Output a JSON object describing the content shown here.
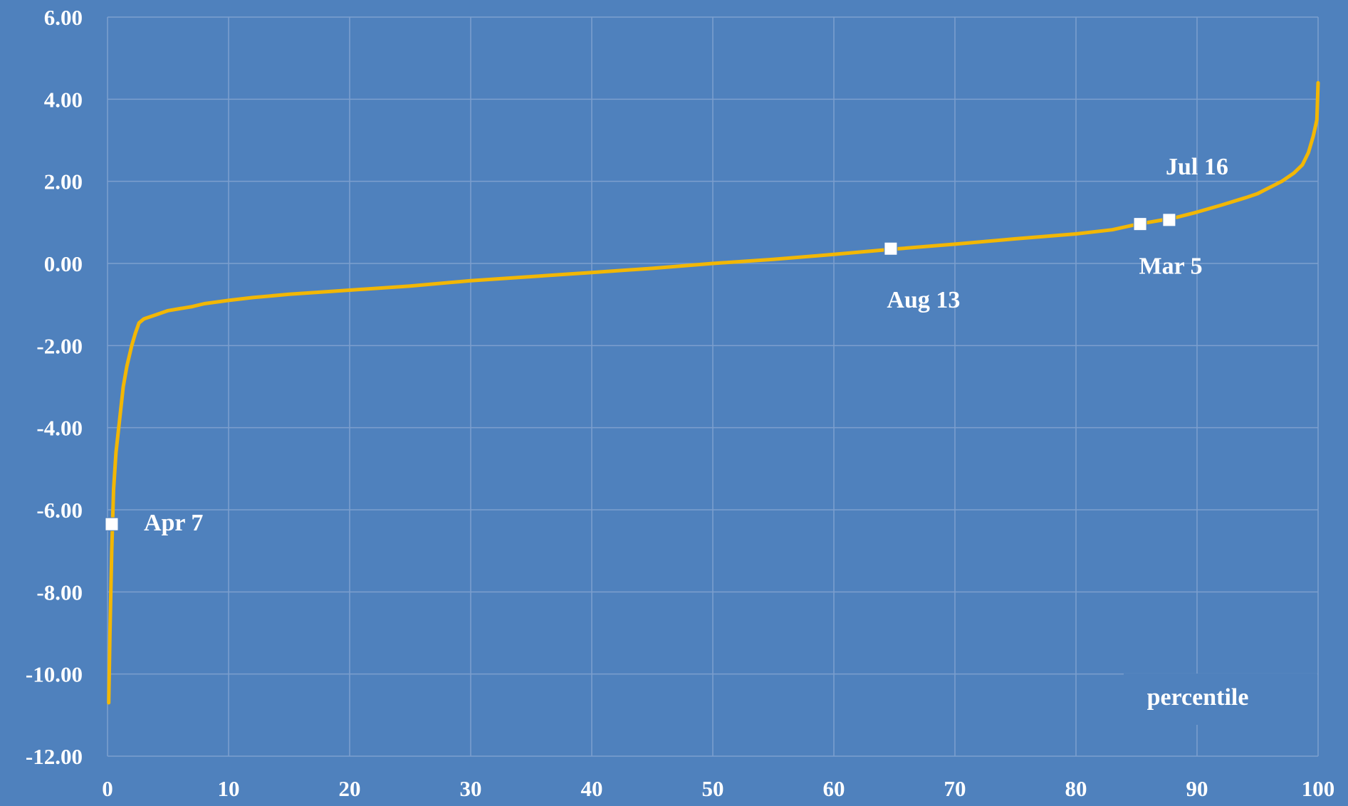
{
  "colors": {
    "background": "#4f81bd",
    "gridline": "#7d9fce",
    "line": "#f2b705",
    "marker": "#ffffff",
    "text": "#ffffff"
  },
  "chart_data": {
    "type": "line",
    "title": "",
    "xlabel": "percentile",
    "ylabel": "",
    "xlim": [
      0,
      100
    ],
    "ylim": [
      -12,
      6
    ],
    "x_ticks": [
      0,
      10,
      20,
      30,
      40,
      50,
      60,
      70,
      80,
      90,
      100
    ],
    "x_tick_labels": [
      "0",
      "10",
      "20",
      "30",
      "40",
      "50",
      "60",
      "70",
      "80",
      "90",
      "100"
    ],
    "y_ticks": [
      6,
      4,
      2,
      0,
      -2,
      -4,
      -6,
      -8,
      -10,
      -12
    ],
    "y_tick_labels": [
      "6.00",
      "4.00",
      "2.00",
      "0.00",
      "-2.00",
      "-4.00",
      "-6.00",
      "-8.00",
      "-10.00",
      "-12.00"
    ],
    "grid": true,
    "series": [
      {
        "name": "",
        "color": "#f2b705",
        "x": [
          0.1,
          0.2,
          0.35,
          0.5,
          0.7,
          1.0,
          1.3,
          1.6,
          2.0,
          2.3,
          2.6,
          3.0,
          4.0,
          5.0,
          6.0,
          7.0,
          8.0,
          10.0,
          12.0,
          15.0,
          20.0,
          25.0,
          30.0,
          35.0,
          40.0,
          45.0,
          50.0,
          55.0,
          60.0,
          65.0,
          70.0,
          75.0,
          80.0,
          83.0,
          85.0,
          87.0,
          88.0,
          90.0,
          92.0,
          94.0,
          95.0,
          96.0,
          97.0,
          98.0,
          98.7,
          99.2,
          99.6,
          99.9,
          100.0
        ],
        "y": [
          -10.7,
          -9.0,
          -7.0,
          -5.5,
          -4.6,
          -3.8,
          -3.0,
          -2.5,
          -2.0,
          -1.7,
          -1.45,
          -1.35,
          -1.25,
          -1.15,
          -1.1,
          -1.05,
          -0.98,
          -0.9,
          -0.83,
          -0.75,
          -0.65,
          -0.55,
          -0.42,
          -0.32,
          -0.22,
          -0.12,
          0.0,
          0.1,
          0.22,
          0.35,
          0.47,
          0.6,
          0.72,
          0.82,
          0.95,
          1.05,
          1.1,
          1.25,
          1.42,
          1.6,
          1.7,
          1.85,
          2.0,
          2.2,
          2.4,
          2.7,
          3.1,
          3.5,
          4.4
        ]
      }
    ],
    "annotations": [
      {
        "label": "Apr 7",
        "x": 0.35,
        "y": -6.35,
        "label_pos": "right"
      },
      {
        "label": "Aug 13",
        "x": 64.7,
        "y": 0.36,
        "label_pos": "below"
      },
      {
        "label": "Mar 5",
        "x": 85.3,
        "y": 0.96,
        "label_pos": "below"
      },
      {
        "label": "Jul 16",
        "x": 87.7,
        "y": 1.06,
        "label_pos": "above"
      }
    ]
  }
}
